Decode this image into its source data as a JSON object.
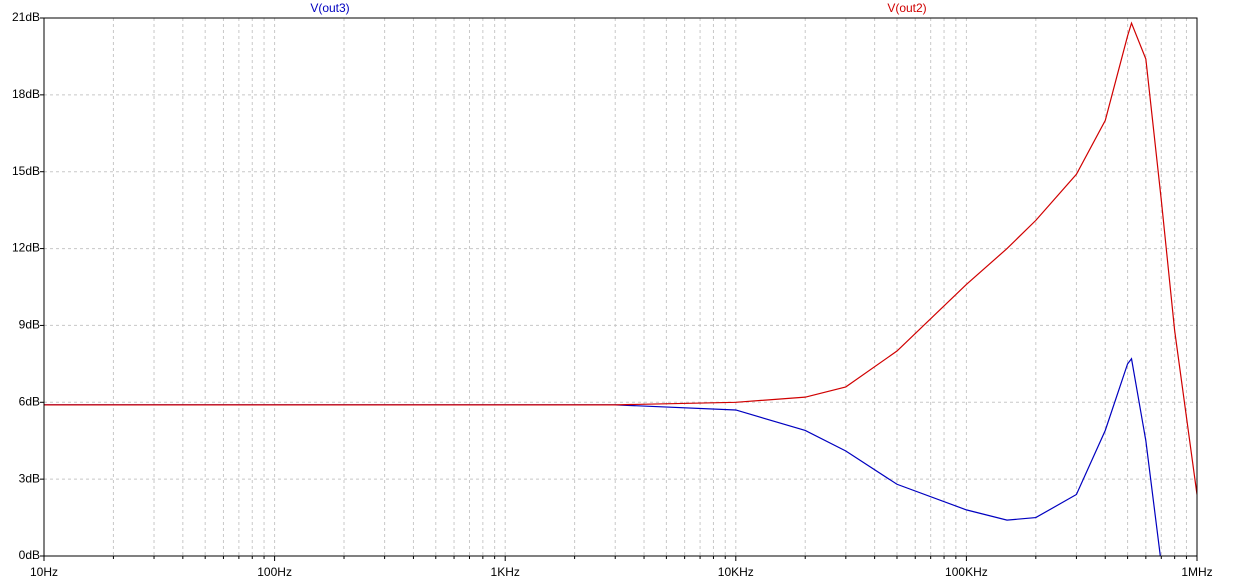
{
  "chart_data": {
    "type": "line",
    "x": [
      10,
      100,
      1000,
      3000,
      10000,
      20000,
      30000,
      50000,
      100000,
      150000,
      200000,
      300000,
      400000,
      500000,
      520000,
      600000,
      700000,
      800000,
      1000000
    ],
    "series": [
      {
        "name": "V(out3)",
        "color": "#0000c0",
        "values": [
          5.9,
          5.9,
          5.9,
          5.9,
          5.7,
          4.9,
          4.1,
          2.8,
          1.8,
          1.4,
          1.5,
          2.4,
          4.9,
          7.5,
          7.7,
          4.5,
          -0.3,
          null,
          null
        ]
      },
      {
        "name": "V(out2)",
        "color": "#d00000",
        "values": [
          5.9,
          5.9,
          5.9,
          5.9,
          6.0,
          6.2,
          6.6,
          8.0,
          10.6,
          12.0,
          13.1,
          14.9,
          17.0,
          20.3,
          20.8,
          19.4,
          13.9,
          8.8,
          2.4
        ]
      }
    ],
    "xlim": [
      10,
      1000000
    ],
    "xticks": [
      {
        "value": 10,
        "label": "10Hz"
      },
      {
        "value": 100,
        "label": "100Hz"
      },
      {
        "value": 1000,
        "label": "1KHz"
      },
      {
        "value": 10000,
        "label": "10KHz"
      },
      {
        "value": 100000,
        "label": "100KHz"
      },
      {
        "value": 1000000,
        "label": "1MHz"
      }
    ],
    "xscale": "log",
    "ylim": [
      0,
      21
    ],
    "yticks": [
      {
        "value": 0,
        "label": "0dB"
      },
      {
        "value": 3,
        "label": "3dB"
      },
      {
        "value": 6,
        "label": "6dB"
      },
      {
        "value": 9,
        "label": "9dB"
      },
      {
        "value": 12,
        "label": "12dB"
      },
      {
        "value": 15,
        "label": "15dB"
      },
      {
        "value": 18,
        "label": "18dB"
      },
      {
        "value": 21,
        "label": "21dB"
      }
    ],
    "grid": true,
    "minor_grid": true
  }
}
